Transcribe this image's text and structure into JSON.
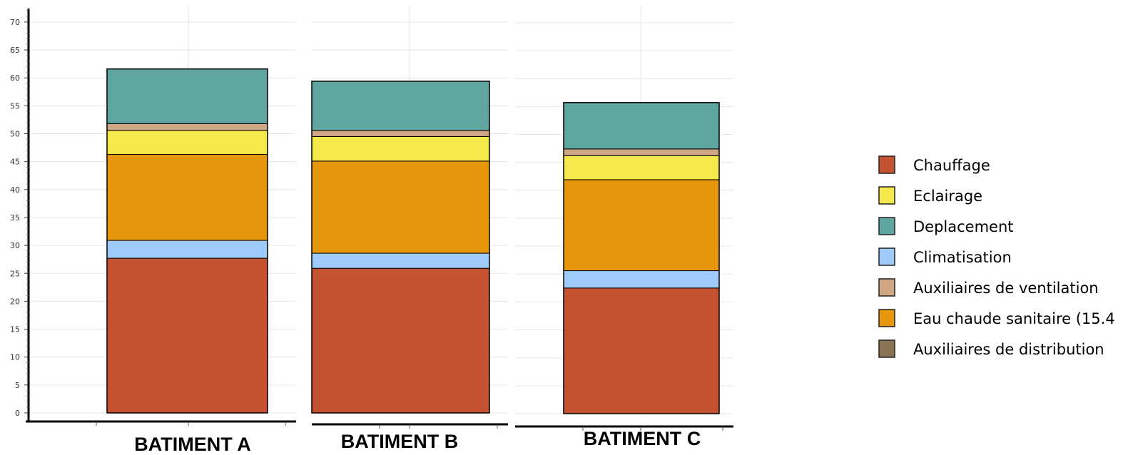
{
  "chart_data": {
    "type": "bar",
    "stacked": true,
    "categories": [
      "BATIMENT A",
      "BATIMENT B",
      "BATIMENT C"
    ],
    "ylim": [
      0,
      70
    ],
    "yticks": [
      0,
      5,
      10,
      15,
      20,
      25,
      30,
      35,
      40,
      45,
      50,
      55,
      60,
      65,
      70
    ],
    "grid": true,
    "legend_position": "right",
    "series": [
      {
        "name": "Chauffage",
        "color": "#c55331",
        "values": [
          27.7,
          25.9,
          22.5
        ]
      },
      {
        "name": "Climatisation",
        "color": "#9fcbfb",
        "values": [
          3.2,
          2.7,
          3.1
        ]
      },
      {
        "name": "Eau chaude sanitaire",
        "color": "#e5960a",
        "values": [
          15.4,
          16.5,
          16.3
        ]
      },
      {
        "name": "Eclairage",
        "color": "#f4e84a",
        "values": [
          4.3,
          4.4,
          4.3
        ]
      },
      {
        "name": "Auxiliaires de ventilation",
        "color": "#cfa785",
        "values": [
          1.2,
          1.1,
          1.2
        ]
      },
      {
        "name": "Deplacement",
        "color": "#5fa6a0",
        "values": [
          9.8,
          8.8,
          8.3
        ]
      }
    ],
    "legend": [
      {
        "label": "Chauffage",
        "color": "#c55331"
      },
      {
        "label": "Eclairage",
        "color": "#f4e84a"
      },
      {
        "label": "Deplacement",
        "color": "#5fa6a0"
      },
      {
        "label": "Climatisation",
        "color": "#9fcbfb"
      },
      {
        "label": "Auxiliaires de ventilation",
        "color": "#cfa785"
      },
      {
        "label": "Eau chaude sanitaire  (15.4",
        "color": "#e5960a"
      },
      {
        "label": "Auxiliaires de distribution",
        "color": "#8a7353"
      }
    ]
  }
}
